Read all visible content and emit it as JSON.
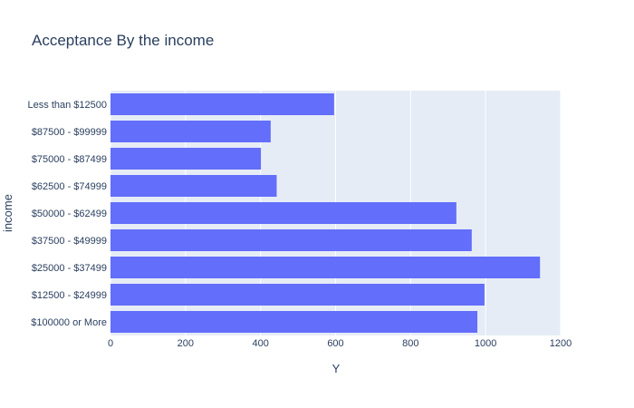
{
  "chart_data": {
    "type": "bar",
    "orientation": "horizontal",
    "title": "Acceptance By the income",
    "xlabel": "Y",
    "ylabel": "income",
    "xlim": [
      0,
      1200
    ],
    "xticks": [
      0,
      200,
      400,
      600,
      800,
      1000,
      1200
    ],
    "categories": [
      "$100000 or More",
      "$12500 - $24999",
      "$25000 - $37499",
      "$37500 - $49999",
      "$50000 - $62499",
      "$62500 - $74999",
      "$75000 - $87499",
      "$87500 - $99999",
      "Less than $12500"
    ],
    "values": [
      978,
      997,
      1145,
      963,
      922,
      443,
      401,
      427,
      596
    ],
    "grid": true,
    "colors": {
      "bar": "#636efa",
      "plot_bg": "#e5ecf6",
      "grid": "#ffffff",
      "text": "#2a3f5f"
    }
  }
}
